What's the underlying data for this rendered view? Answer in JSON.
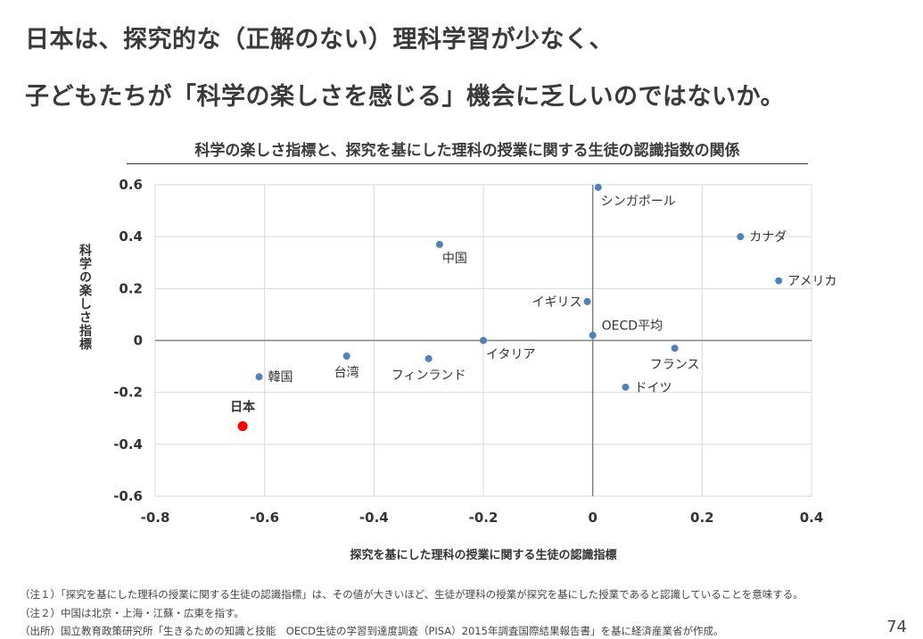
{
  "header": {
    "title_line1": "日本は、探究的な（正解のない）理科学習が少なく、",
    "title_line2": "子どもたちが「科学の楽しさを感じる」機会に乏しいのではないか。"
  },
  "chart_data": {
    "type": "scatter",
    "title": "科学の楽しさ指標と、探究を基にした理科の授業に関する生徒の認識指数の関係",
    "xlabel": "探究を基にした理科の授業に関する生徒の認識指標",
    "ylabel": "科学の楽しさ指標",
    "xlim": [
      -0.8,
      0.4
    ],
    "ylim": [
      -0.6,
      0.6
    ],
    "x_ticks": [
      "-0.8",
      "-0.6",
      "-0.4",
      "-0.2",
      "0",
      "0.2",
      "0.4"
    ],
    "y_ticks": [
      "0.6",
      "0.4",
      "0.2",
      "0",
      "-0.2",
      "-0.4",
      "-0.6"
    ],
    "grid": true,
    "colors": {
      "point": "#4f81bd",
      "highlight": "#ff0000",
      "grid": "#d9d9d9",
      "axis": "#808080"
    },
    "points": [
      {
        "label": "シンガポール",
        "x": 0.01,
        "y": 0.59,
        "highlight": false,
        "label_pos": "below-right"
      },
      {
        "label": "カナダ",
        "x": 0.27,
        "y": 0.4,
        "highlight": false,
        "label_pos": "right"
      },
      {
        "label": "中国",
        "x": -0.28,
        "y": 0.37,
        "highlight": false,
        "label_pos": "below-right"
      },
      {
        "label": "アメリカ",
        "x": 0.34,
        "y": 0.23,
        "highlight": false,
        "label_pos": "right"
      },
      {
        "label": "イギリス",
        "x": -0.01,
        "y": 0.15,
        "highlight": false,
        "label_pos": "left"
      },
      {
        "label": "OECD平均",
        "x": 0.0,
        "y": 0.02,
        "highlight": false,
        "label_pos": "above-right"
      },
      {
        "label": "イタリア",
        "x": -0.2,
        "y": 0.0,
        "highlight": false,
        "label_pos": "below-right"
      },
      {
        "label": "フランス",
        "x": 0.15,
        "y": -0.03,
        "highlight": false,
        "label_pos": "below"
      },
      {
        "label": "台湾",
        "x": -0.45,
        "y": -0.06,
        "highlight": false,
        "label_pos": "below"
      },
      {
        "label": "フィンランド",
        "x": -0.3,
        "y": -0.07,
        "highlight": false,
        "label_pos": "below"
      },
      {
        "label": "韓国",
        "x": -0.61,
        "y": -0.14,
        "highlight": false,
        "label_pos": "right"
      },
      {
        "label": "ドイツ",
        "x": 0.06,
        "y": -0.18,
        "highlight": false,
        "label_pos": "right"
      },
      {
        "label": "日本",
        "x": -0.64,
        "y": -0.33,
        "highlight": true,
        "label_pos": "above"
      }
    ]
  },
  "footer": {
    "note1": "（注１）「探究を基にした理科の授業に関する生徒の認識指標」は、その値が大きいほど、生徒が理科の授業が探究を基にした授業であると認識していることを意味する。",
    "note2": "（注２）中国は北京・上海・江蘇・広東を指す。",
    "source": "（出所）国立教育政策研究所「生きるための知識と技能　OECD生徒の学習到達度調査（PISA）2015年調査国際結果報告書」を基に経済産業省が作成。",
    "page_number": "74"
  }
}
